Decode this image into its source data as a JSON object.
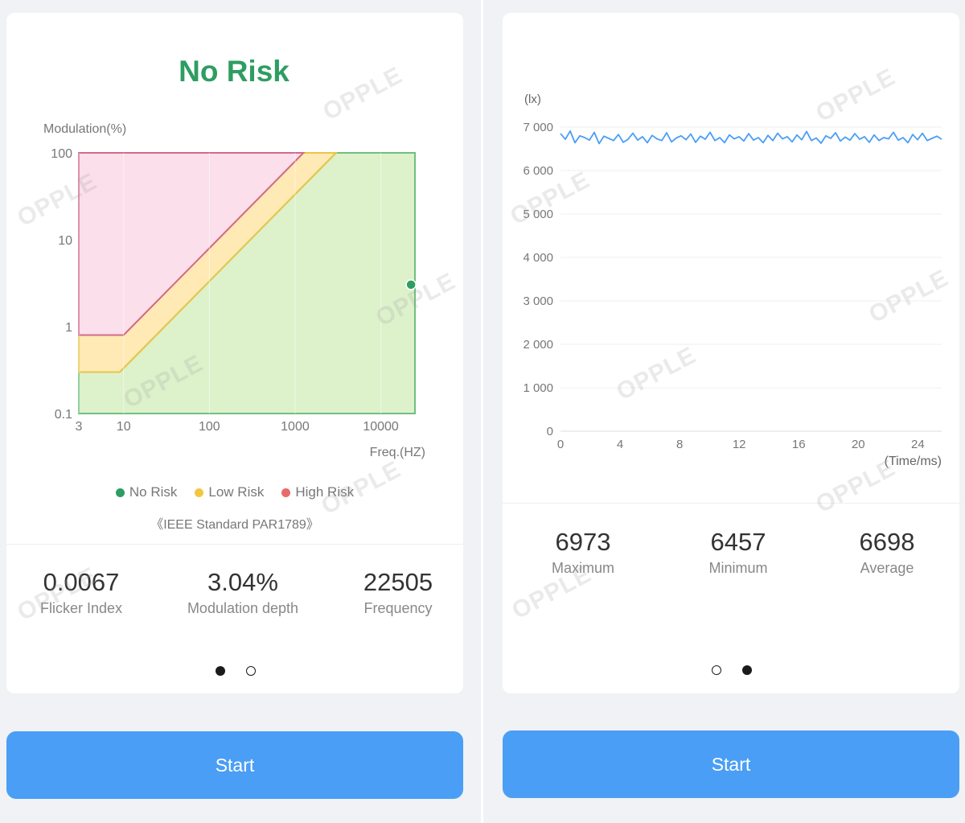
{
  "watermark": "OPPLE",
  "left_panel": {
    "risk_title": "No Risk",
    "chart_data": {
      "type": "area",
      "title": "",
      "ylabel": "Modulation(%)",
      "xlabel": "Freq.(HZ)",
      "x_scale": "log",
      "y_scale": "log",
      "x_ticks": [
        "3",
        "10",
        "100",
        "1000",
        "10000"
      ],
      "y_ticks": [
        "100",
        "10",
        "1",
        "0.1"
      ],
      "xlim": [
        3,
        25000
      ],
      "ylim": [
        0.1,
        100
      ],
      "regions": [
        {
          "name": "No Risk",
          "color": "#2e9d62",
          "points": [
            [
              3,
              0.1
            ],
            [
              3,
              0.3
            ],
            [
              9,
              0.3
            ],
            [
              3000,
              100
            ],
            [
              25000,
              100
            ],
            [
              25000,
              0.1
            ]
          ]
        },
        {
          "name": "Low Risk",
          "color": "#f5c542",
          "points": [
            [
              3,
              0.3
            ],
            [
              3,
              0.8
            ],
            [
              10,
              0.8
            ],
            [
              1250,
              100
            ],
            [
              3000,
              100
            ],
            [
              9,
              0.3
            ]
          ]
        },
        {
          "name": "High Risk",
          "color": "#e86a6a",
          "points": [
            [
              3,
              0.8
            ],
            [
              3,
              100
            ],
            [
              1250,
              100
            ],
            [
              10,
              0.8
            ]
          ]
        }
      ],
      "measurement": {
        "frequency": 22505,
        "modulation": 3.04
      },
      "legend": [
        "No Risk",
        "Low Risk",
        "High Risk"
      ],
      "legend_colors": [
        "#2e9d62",
        "#f5c542",
        "#e86a6a"
      ]
    },
    "standard": "《IEEE Standard PAR1789》",
    "stats": [
      {
        "value": "0.0067",
        "label": "Flicker Index"
      },
      {
        "value": "3.04%",
        "label": "Modulation depth"
      },
      {
        "value": "22505",
        "label": "Frequency"
      }
    ],
    "page_index": 1,
    "page_count": 2,
    "start_label": "Start"
  },
  "right_panel": {
    "chart_data": {
      "type": "line",
      "title": "",
      "ylabel": "(lx)",
      "xlabel": "(Time/ms)",
      "x_ticks": [
        "0",
        "4",
        "8",
        "12",
        "16",
        "20",
        "24"
      ],
      "y_ticks": [
        "7 000",
        "6 000",
        "5 000",
        "4 000",
        "3 000",
        "2 000",
        "1 000",
        "0"
      ],
      "xlim": [
        0,
        25.6
      ],
      "ylim": [
        0,
        7000
      ],
      "grid": true,
      "line_color": "#4a9ef5",
      "series": [
        {
          "values": [
            6850,
            6720,
            6910,
            6640,
            6800,
            6760,
            6700,
            6880,
            6620,
            6790,
            6740,
            6690,
            6830,
            6650,
            6720,
            6860,
            6700,
            6780,
            6640,
            6810,
            6730,
            6690,
            6870,
            6660,
            6750,
            6800,
            6710,
            6840,
            6650,
            6790,
            6720,
            6880,
            6690,
            6760,
            6640,
            6820,
            6730,
            6780,
            6680,
            6850,
            6700,
            6760,
            6640,
            6810,
            6690,
            6860,
            6730,
            6780,
            6660,
            6820,
            6710,
            6900,
            6690,
            6750,
            6630,
            6800,
            6740,
            6870,
            6680,
            6770,
            6700,
            6850,
            6720,
            6780,
            6650,
            6820,
            6690,
            6760,
            6730,
            6880,
            6700,
            6760,
            6640,
            6830,
            6710,
            6860,
            6690,
            6740,
            6790,
            6720
          ]
        }
      ]
    },
    "stats": [
      {
        "value": "6973",
        "label": "Maximum"
      },
      {
        "value": "6457",
        "label": "Minimum"
      },
      {
        "value": "6698",
        "label": "Average"
      }
    ],
    "page_index": 2,
    "page_count": 2,
    "start_label": "Start"
  }
}
